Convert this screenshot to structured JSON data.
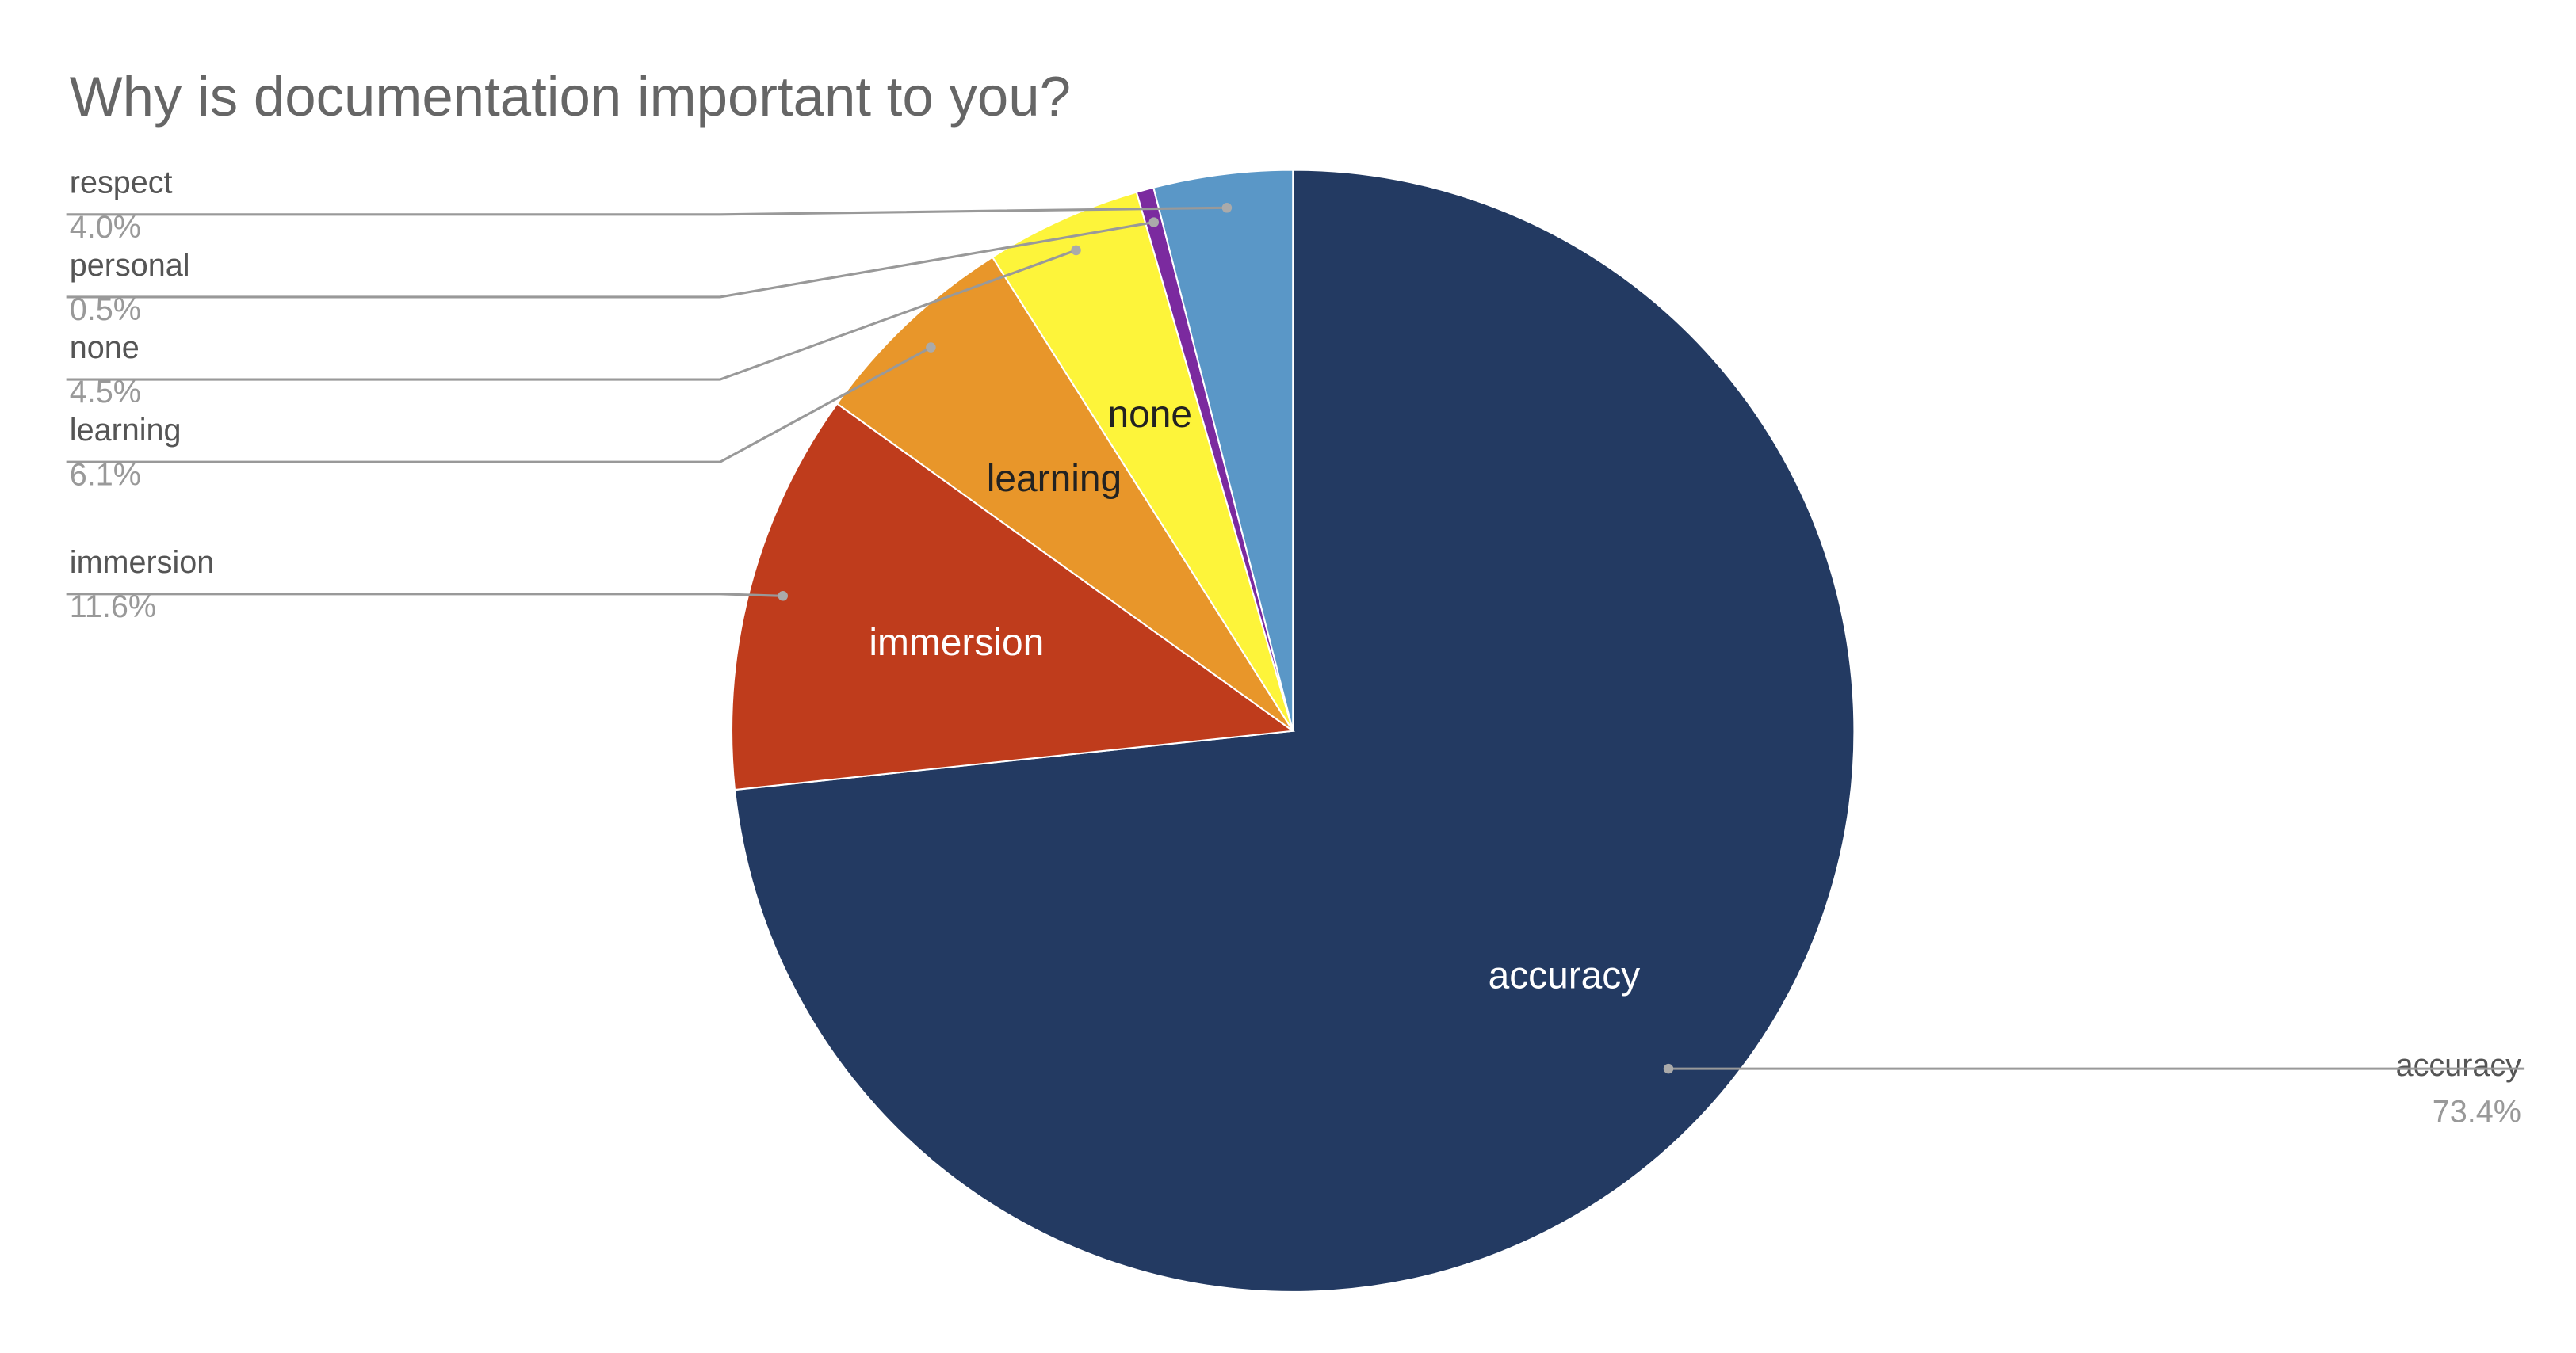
{
  "chart_data": {
    "type": "pie",
    "title": "Why is documentation important to you?",
    "categories": [
      "accuracy",
      "immersion",
      "learning",
      "none",
      "personal",
      "respect"
    ],
    "values": [
      73.4,
      11.6,
      6.1,
      4.5,
      0.5,
      4.0
    ],
    "value_labels": [
      "73.4%",
      "11.6%",
      "6.1%",
      "4.5%",
      "0.5%",
      "4.0%"
    ],
    "colors": [
      "#233a62",
      "#bf3c1c",
      "#e8962a",
      "#fdf43a",
      "#7b2a9f",
      "#5a97c7"
    ]
  }
}
